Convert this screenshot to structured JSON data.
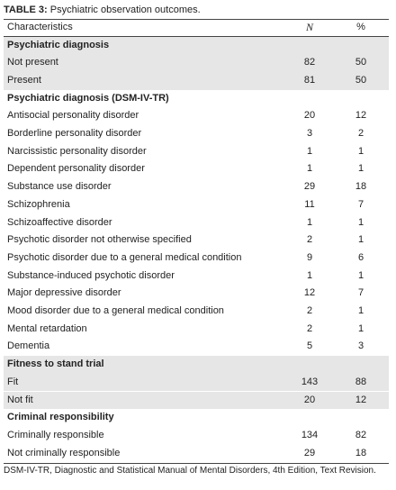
{
  "caption": {
    "label": "TABLE 3:",
    "text": "Psychiatric observation outcomes."
  },
  "header": [
    "Characteristics",
    "N",
    "%"
  ],
  "sections": [
    {
      "title": "Psychiatric diagnosis",
      "rows": [
        [
          "Not present",
          82,
          50
        ],
        [
          "Present",
          81,
          50
        ]
      ]
    },
    {
      "title": "Psychiatric diagnosis (DSM-IV-TR)",
      "rows": [
        [
          "Antisocial personality disorder",
          20,
          12
        ],
        [
          "Borderline personality disorder",
          3,
          2
        ],
        [
          "Narcissistic personality disorder",
          1,
          1
        ],
        [
          "Dependent personality disorder",
          1,
          1
        ],
        [
          "Substance use disorder",
          29,
          18
        ],
        [
          "Schizophrenia",
          11,
          7
        ],
        [
          "Schizoaffective disorder",
          1,
          1
        ],
        [
          "Psychotic disorder not otherwise specified",
          2,
          1
        ],
        [
          "Psychotic disorder due to a general medical condition",
          9,
          6
        ],
        [
          "Substance-induced psychotic disorder",
          1,
          1
        ],
        [
          "Major depressive disorder",
          12,
          7
        ],
        [
          "Mood disorder due to a general medical condition",
          2,
          1
        ],
        [
          "Mental retardation",
          2,
          1
        ],
        [
          "Dementia",
          5,
          3
        ]
      ]
    },
    {
      "title": "Fitness to stand trial",
      "rows": [
        [
          "Fit",
          143,
          88
        ],
        [
          "Not fit",
          20,
          12
        ]
      ]
    },
    {
      "title": "Criminal responsibility",
      "rows": [
        [
          "Criminally responsible",
          134,
          82
        ],
        [
          "Not criminally responsible",
          29,
          18
        ]
      ]
    }
  ],
  "footnote": "DSM-IV-TR, Diagnostic and Statistical Manual of Mental Disorders, 4th Edition, Text Revision."
}
